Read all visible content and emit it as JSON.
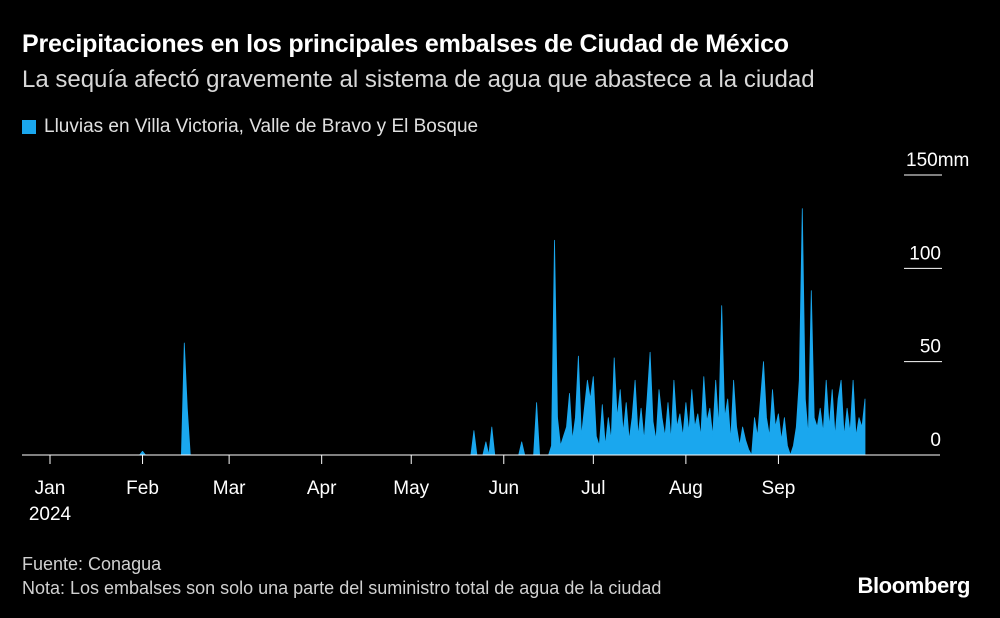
{
  "title": "Precipitaciones en los principales embalses de Ciudad de México",
  "subtitle": "La sequía afectó gravemente al sistema de agua que abastece a la ciudad",
  "source": "Fuente: Conagua",
  "note": "Nota: Los embalses son solo una parte del suministro total de agua de la ciudad",
  "brand": "Bloomberg",
  "colors": {
    "background": "#000000",
    "series": "#1aa7ee",
    "axis": "#ffffff"
  },
  "chart_data": {
    "type": "area",
    "title": "Precipitaciones en los principales embalses de Ciudad de México",
    "subtitle": "La sequía afectó gravemente al sistema de agua que abastece a la ciudad",
    "legend": "top-left",
    "grid": false,
    "y_unit": "mm",
    "ylim": [
      0,
      150
    ],
    "y_ticks": [
      {
        "value": 0,
        "label": "0"
      },
      {
        "value": 50,
        "label": "50"
      },
      {
        "value": 100,
        "label": "100"
      },
      {
        "value": 150,
        "label": "150"
      }
    ],
    "xlim": [
      "2024-01-01",
      "2024-09-30"
    ],
    "x_ticks": [
      {
        "date": "2024-01-01",
        "label": "Jan",
        "sublabel": "2024"
      },
      {
        "date": "2024-02-01",
        "label": "Feb"
      },
      {
        "date": "2024-03-01",
        "label": "Mar"
      },
      {
        "date": "2024-04-01",
        "label": "Apr"
      },
      {
        "date": "2024-05-01",
        "label": "May"
      },
      {
        "date": "2024-06-01",
        "label": "Jun"
      },
      {
        "date": "2024-07-01",
        "label": "Jul"
      },
      {
        "date": "2024-08-01",
        "label": "Aug"
      },
      {
        "date": "2024-09-01",
        "label": "Sep"
      }
    ],
    "series": [
      {
        "name": "Lluvias en Villa Victoria, Valle de Bravo y El Bosque",
        "color": "#1aa7ee",
        "points": [
          [
            "2024-01-01",
            0
          ],
          [
            "2024-01-31",
            0
          ],
          [
            "2024-02-01",
            2
          ],
          [
            "2024-02-02",
            0
          ],
          [
            "2024-02-14",
            0
          ],
          [
            "2024-02-15",
            60
          ],
          [
            "2024-02-16",
            25
          ],
          [
            "2024-02-17",
            0
          ],
          [
            "2024-05-21",
            0
          ],
          [
            "2024-05-22",
            13
          ],
          [
            "2024-05-23",
            0
          ],
          [
            "2024-05-25",
            0
          ],
          [
            "2024-05-26",
            7
          ],
          [
            "2024-05-27",
            0
          ],
          [
            "2024-05-28",
            15
          ],
          [
            "2024-05-29",
            0
          ],
          [
            "2024-06-06",
            0
          ],
          [
            "2024-06-07",
            7
          ],
          [
            "2024-06-08",
            0
          ],
          [
            "2024-06-11",
            0
          ],
          [
            "2024-06-12",
            28
          ],
          [
            "2024-06-13",
            0
          ],
          [
            "2024-06-16",
            0
          ],
          [
            "2024-06-17",
            5
          ],
          [
            "2024-06-18",
            115
          ],
          [
            "2024-06-19",
            20
          ],
          [
            "2024-06-20",
            5
          ],
          [
            "2024-06-21",
            10
          ],
          [
            "2024-06-22",
            15
          ],
          [
            "2024-06-23",
            33
          ],
          [
            "2024-06-24",
            8
          ],
          [
            "2024-06-25",
            20
          ],
          [
            "2024-06-26",
            53
          ],
          [
            "2024-06-27",
            10
          ],
          [
            "2024-06-28",
            25
          ],
          [
            "2024-06-29",
            40
          ],
          [
            "2024-06-30",
            30
          ],
          [
            "2024-07-01",
            42
          ],
          [
            "2024-07-02",
            10
          ],
          [
            "2024-07-03",
            5
          ],
          [
            "2024-07-04",
            27
          ],
          [
            "2024-07-05",
            5
          ],
          [
            "2024-07-06",
            20
          ],
          [
            "2024-07-07",
            8
          ],
          [
            "2024-07-08",
            52
          ],
          [
            "2024-07-09",
            20
          ],
          [
            "2024-07-10",
            35
          ],
          [
            "2024-07-11",
            12
          ],
          [
            "2024-07-12",
            28
          ],
          [
            "2024-07-13",
            8
          ],
          [
            "2024-07-14",
            20
          ],
          [
            "2024-07-15",
            40
          ],
          [
            "2024-07-16",
            10
          ],
          [
            "2024-07-17",
            25
          ],
          [
            "2024-07-18",
            8
          ],
          [
            "2024-07-19",
            30
          ],
          [
            "2024-07-20",
            55
          ],
          [
            "2024-07-21",
            18
          ],
          [
            "2024-07-22",
            8
          ],
          [
            "2024-07-23",
            35
          ],
          [
            "2024-07-24",
            20
          ],
          [
            "2024-07-25",
            10
          ],
          [
            "2024-07-26",
            28
          ],
          [
            "2024-07-27",
            8
          ],
          [
            "2024-07-28",
            40
          ],
          [
            "2024-07-29",
            15
          ],
          [
            "2024-07-30",
            22
          ],
          [
            "2024-07-31",
            10
          ],
          [
            "2024-08-01",
            28
          ],
          [
            "2024-08-02",
            12
          ],
          [
            "2024-08-03",
            35
          ],
          [
            "2024-08-04",
            15
          ],
          [
            "2024-08-05",
            22
          ],
          [
            "2024-08-06",
            10
          ],
          [
            "2024-08-07",
            42
          ],
          [
            "2024-08-08",
            18
          ],
          [
            "2024-08-09",
            25
          ],
          [
            "2024-08-10",
            10
          ],
          [
            "2024-08-11",
            40
          ],
          [
            "2024-08-12",
            15
          ],
          [
            "2024-08-13",
            80
          ],
          [
            "2024-08-14",
            20
          ],
          [
            "2024-08-15",
            30
          ],
          [
            "2024-08-16",
            8
          ],
          [
            "2024-08-17",
            40
          ],
          [
            "2024-08-18",
            15
          ],
          [
            "2024-08-19",
            5
          ],
          [
            "2024-08-20",
            15
          ],
          [
            "2024-08-21",
            8
          ],
          [
            "2024-08-22",
            3
          ],
          [
            "2024-08-23",
            0
          ],
          [
            "2024-08-24",
            20
          ],
          [
            "2024-08-25",
            10
          ],
          [
            "2024-08-26",
            30
          ],
          [
            "2024-08-27",
            50
          ],
          [
            "2024-08-28",
            20
          ],
          [
            "2024-08-29",
            10
          ],
          [
            "2024-08-30",
            35
          ],
          [
            "2024-08-31",
            15
          ],
          [
            "2024-09-01",
            22
          ],
          [
            "2024-09-02",
            8
          ],
          [
            "2024-09-03",
            20
          ],
          [
            "2024-09-04",
            5
          ],
          [
            "2024-09-05",
            0
          ],
          [
            "2024-09-06",
            5
          ],
          [
            "2024-09-07",
            15
          ],
          [
            "2024-09-08",
            40
          ],
          [
            "2024-09-09",
            132
          ],
          [
            "2024-09-10",
            30
          ],
          [
            "2024-09-11",
            10
          ],
          [
            "2024-09-12",
            88
          ],
          [
            "2024-09-13",
            20
          ],
          [
            "2024-09-14",
            15
          ],
          [
            "2024-09-15",
            25
          ],
          [
            "2024-09-16",
            12
          ],
          [
            "2024-09-17",
            40
          ],
          [
            "2024-09-18",
            15
          ],
          [
            "2024-09-19",
            35
          ],
          [
            "2024-09-20",
            10
          ],
          [
            "2024-09-21",
            30
          ],
          [
            "2024-09-22",
            40
          ],
          [
            "2024-09-23",
            10
          ],
          [
            "2024-09-24",
            25
          ],
          [
            "2024-09-25",
            12
          ],
          [
            "2024-09-26",
            40
          ],
          [
            "2024-09-27",
            10
          ],
          [
            "2024-09-28",
            20
          ],
          [
            "2024-09-29",
            15
          ],
          [
            "2024-09-30",
            30
          ]
        ]
      }
    ]
  }
}
